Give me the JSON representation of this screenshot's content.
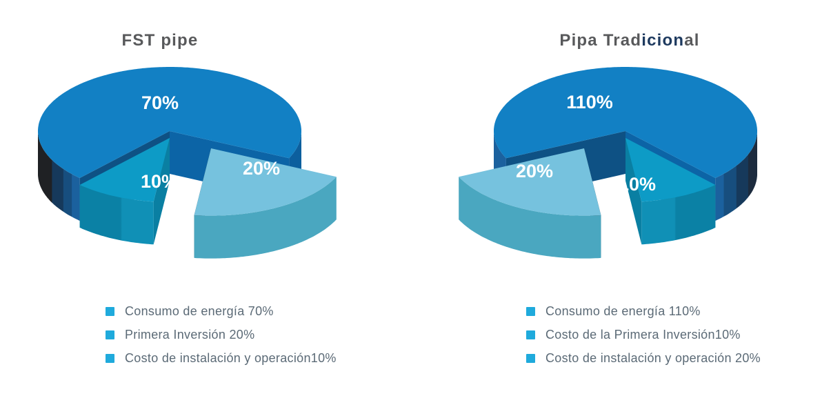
{
  "page": {
    "background_color": "#ffffff",
    "figure_name": "FST pipe vs Pipa Tradicional 3D exploded pie comparison"
  },
  "chart_data": [
    {
      "type": "pie",
      "style": "3d-exploded",
      "title": "FST pipe",
      "slices": [
        {
          "role": "main",
          "label": "70%",
          "value": 70,
          "color": "#1280c4"
        },
        {
          "role": "small",
          "label": "10%",
          "value": 10,
          "color": "#0d9bc6"
        },
        {
          "role": "exploded",
          "label": "20%",
          "value": 20,
          "color": "#76c2de"
        }
      ],
      "legend": [
        "Consumo de energía 70%",
        "Primera Inversión 20%",
        "Costo de instalación y operación10%"
      ],
      "legend_marker_color": "#1faadc"
    },
    {
      "type": "pie",
      "style": "3d-exploded",
      "title": "Pipa Tradicional",
      "title_parts": [
        {
          "text": "Pipa Trad",
          "color": "#58595b"
        },
        {
          "text": "icion",
          "color": "#1e3a5f"
        },
        {
          "text": "al",
          "color": "#58595b"
        }
      ],
      "slices": [
        {
          "role": "main",
          "label": "110%",
          "value": 110,
          "color": "#1280c4"
        },
        {
          "role": "small",
          "label": "10%",
          "value": 10,
          "color": "#0d9bc6"
        },
        {
          "role": "exploded",
          "label": "20%",
          "value": 20,
          "color": "#76c2de"
        }
      ],
      "legend": [
        "Consumo de energía 110%",
        "Costo de la Primera Inversión10%",
        "Costo de instalación y operación 20%"
      ],
      "legend_marker_color": "#1faadc"
    }
  ],
  "palette": {
    "pie_blue_top": "#1280c4",
    "pie_blue_cut_left": "#0e5184",
    "pie_blue_cut_right": "#0c64a6",
    "pie_blue_side_shades": [
      "#1b619e",
      "#174e7e",
      "#16395b",
      "#1f2124"
    ],
    "pie_teal_top": "#0d9bc6",
    "pie_teal_side_shades": [
      "#1090b6",
      "#0b81a5"
    ],
    "pie_light_blue_top": "#76c2de",
    "pie_light_blue_side": "#4aa7c0",
    "pie_black_cut": "#26282b",
    "title_color": "#58595b",
    "legend_text_color": "#5b6a76",
    "legend_marker_color": "#1faadc"
  }
}
